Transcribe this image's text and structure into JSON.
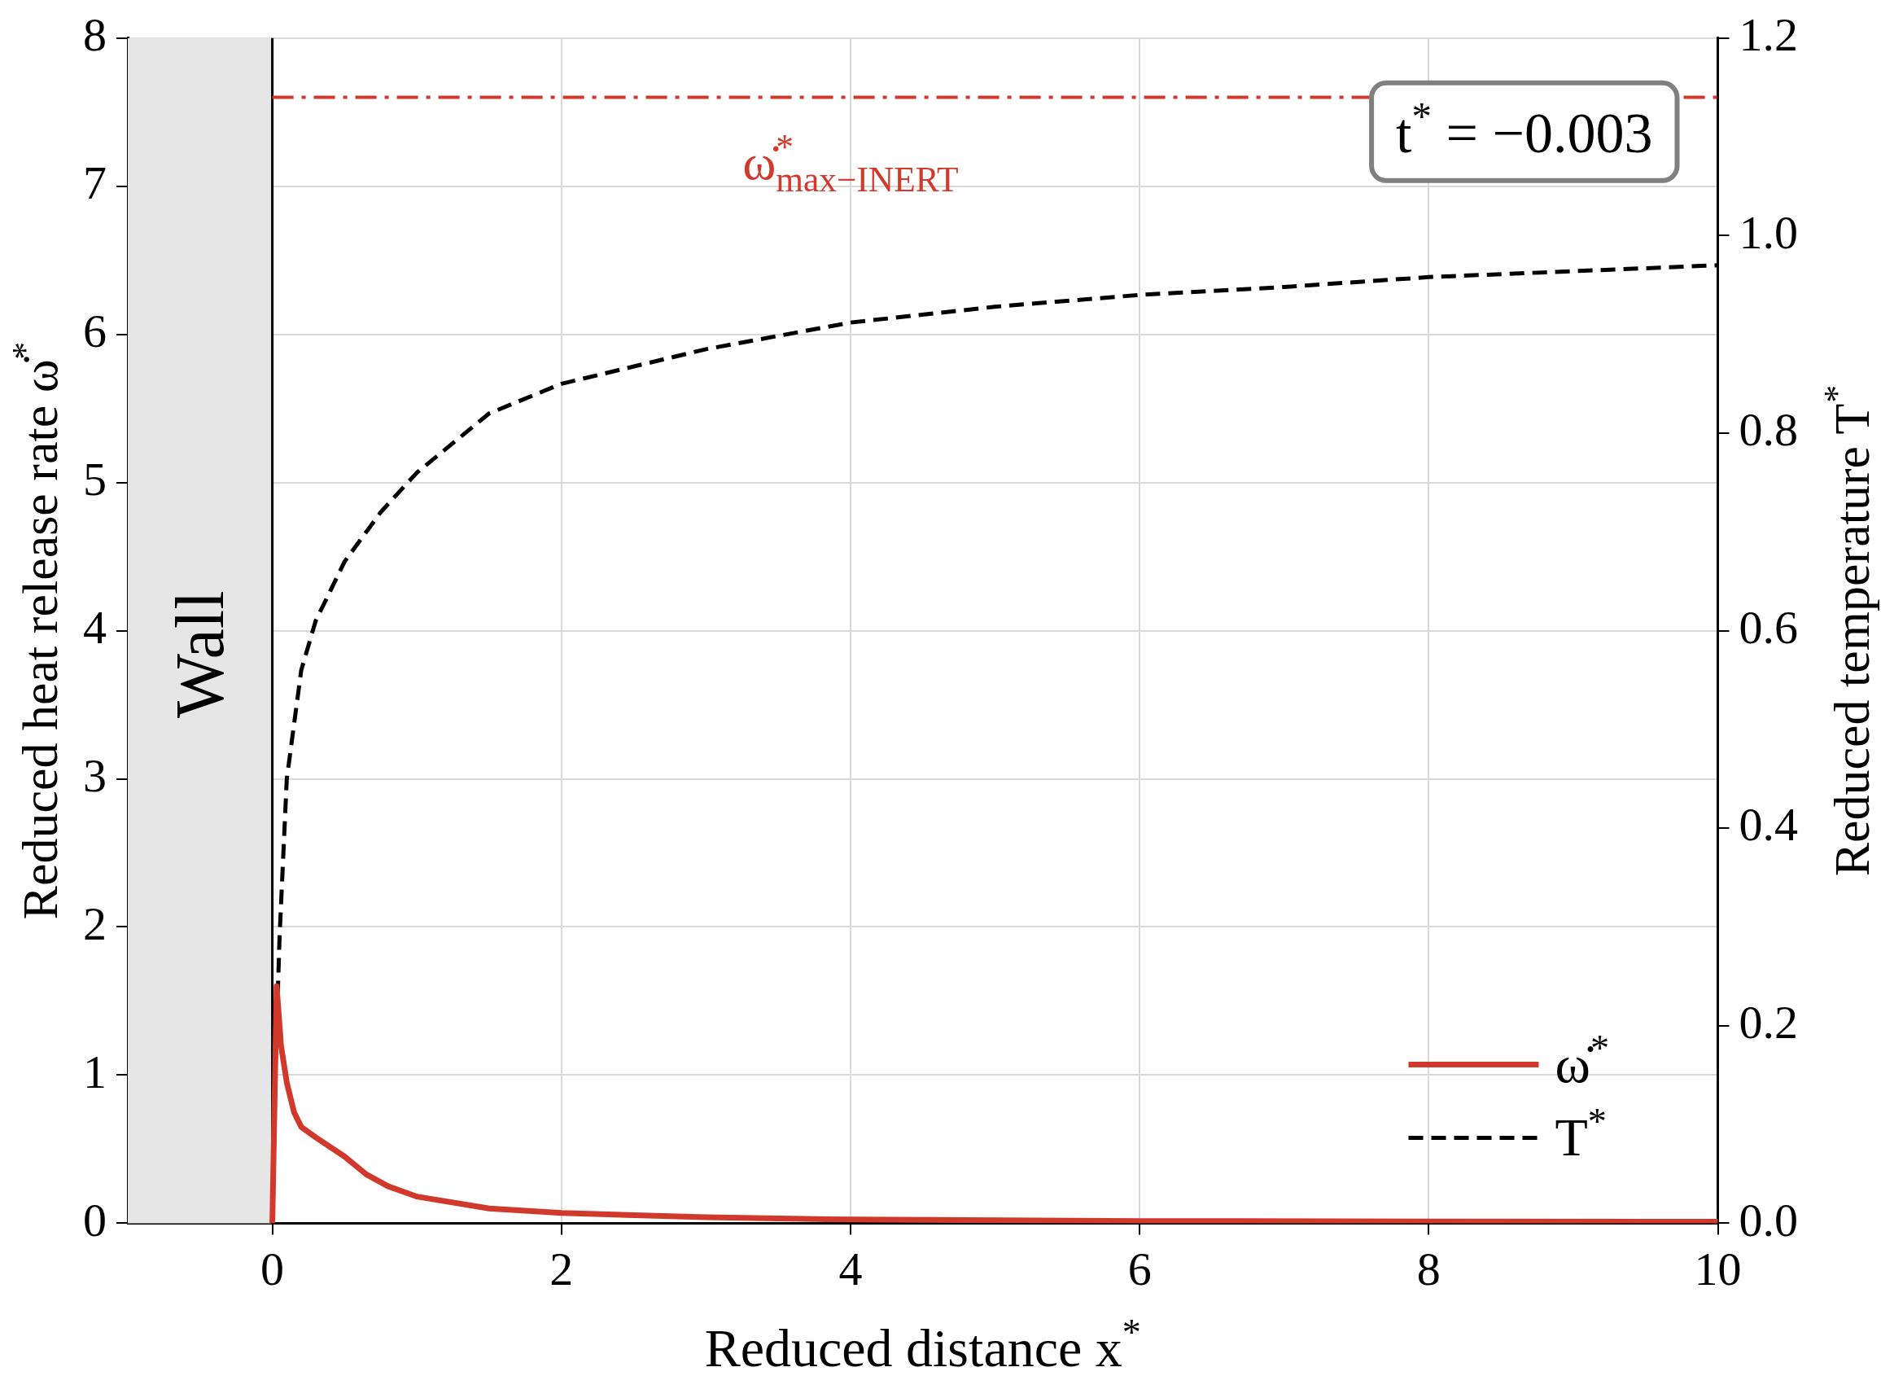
{
  "chart_data": {
    "type": "line",
    "xlabel": "Reduced distance x$^{*}$",
    "ylabel": "Reduced heat release rate ω̇$^{*}$",
    "y2label": "Reduced temperature T$^{*}$",
    "xlim": [
      -1,
      10
    ],
    "xticks": [
      0,
      2,
      4,
      6,
      8,
      10
    ],
    "ylim": [
      0,
      8
    ],
    "yticks": [
      0,
      1,
      2,
      3,
      4,
      5,
      6,
      7,
      8
    ],
    "y2lim": [
      0,
      1.2
    ],
    "y2ticks": [
      {
        "value": 0,
        "label": "0.0"
      },
      {
        "value": 0.2,
        "label": "0.2"
      },
      {
        "value": 0.4,
        "label": "0.4"
      },
      {
        "value": 0.6,
        "label": "0.6"
      },
      {
        "value": 0.8,
        "label": "0.8"
      },
      {
        "value": 1.0,
        "label": "1.0"
      },
      {
        "value": 1.2,
        "label": "1.2"
      }
    ],
    "grid": true,
    "legend": "bottom right",
    "series": [
      {
        "name": "ω̇$^{*}$",
        "color": "#d0392b",
        "line_style": "solid",
        "x": [
          0,
          0.03,
          0.06,
          0.1,
          0.15,
          0.2,
          0.3,
          0.5,
          0.65,
          0.8,
          1,
          1.5,
          2,
          3,
          4,
          6,
          8,
          10
        ],
        "values": [
          0,
          1.6,
          1.2,
          0.95,
          0.75,
          0.65,
          0.58,
          0.45,
          0.33,
          0.25,
          0.18,
          0.1,
          0.07,
          0.04,
          0.025,
          0.015,
          0.012,
          0.01
        ]
      },
      {
        "name": "T$^{*}$",
        "color": "#000000",
        "line_style": "dashed",
        "axis": "y2",
        "x": [
          0,
          0.02,
          0.05,
          0.1,
          0.2,
          0.3,
          0.4,
          0.5,
          0.75,
          1,
          1.5,
          2,
          3,
          4,
          5,
          6,
          7,
          8,
          10
        ],
        "values": [
          0,
          0.15,
          0.29,
          0.45,
          0.56,
          0.61,
          0.64,
          0.67,
          0.72,
          0.76,
          0.82,
          0.85,
          0.885,
          0.912,
          0.928,
          0.94,
          0.948,
          0.958,
          0.97
        ]
      }
    ],
    "ref_lines": [
      {
        "axis": "y",
        "value": 7.6,
        "label": "ω̇$^{*}$$_{max−INERT}$",
        "color": "#d0392b",
        "line_style": "dashdot"
      }
    ],
    "bands": [
      {
        "axis": "x",
        "from": -1,
        "to": 0,
        "label": "Wall",
        "color": "#e6e6e6"
      }
    ],
    "annotations": [
      "t$^{*}$ = −0.003"
    ]
  }
}
